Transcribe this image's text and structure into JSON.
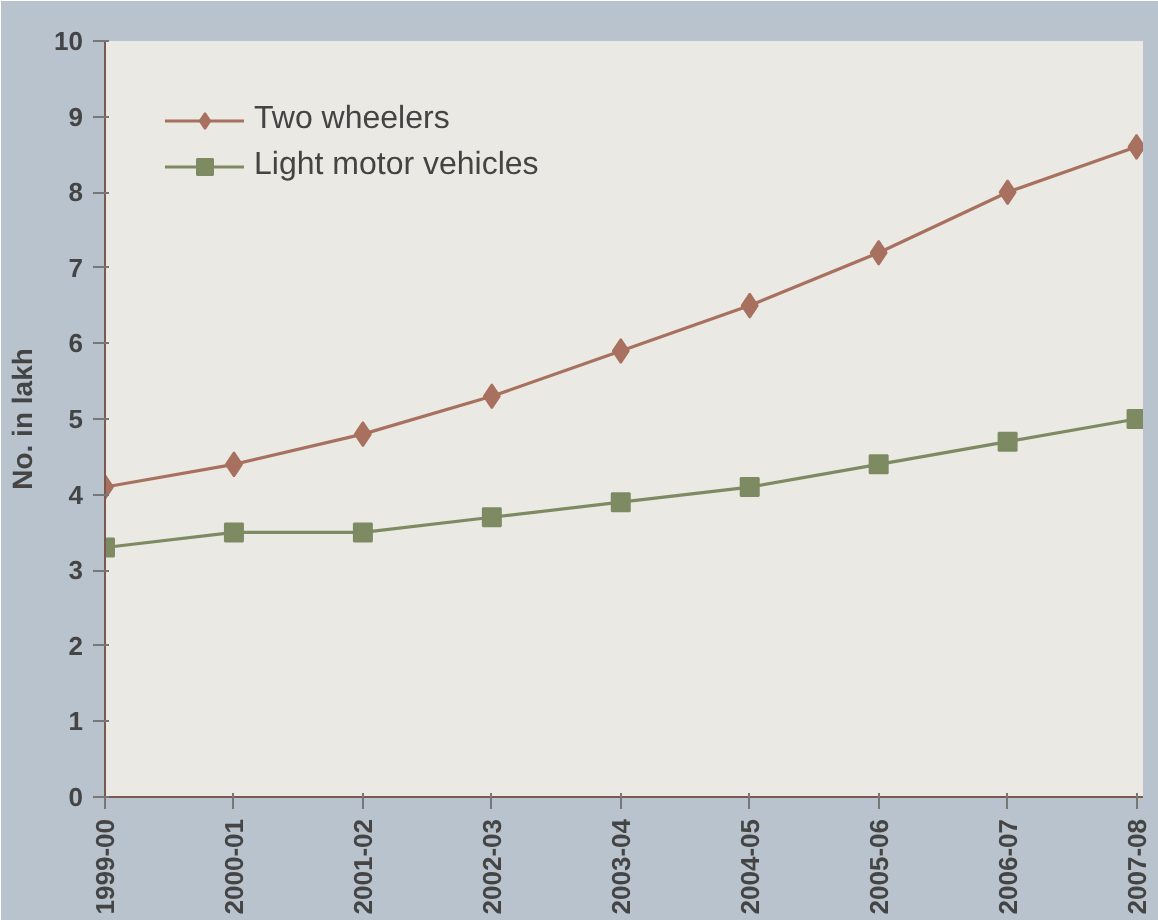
{
  "chart_data": {
    "type": "line",
    "ylabel": "No. in lakh",
    "categories": [
      "1999-00",
      "2000-01",
      "2001-02",
      "2002-03",
      "2003-04",
      "2004-05",
      "2005-06",
      "2006-07",
      "2007-08"
    ],
    "series": [
      {
        "name": "Two wheelers",
        "color": "#a8705f",
        "marker": "diamond",
        "values": [
          4.1,
          4.4,
          4.8,
          5.3,
          5.9,
          6.5,
          7.2,
          8.0,
          8.6
        ]
      },
      {
        "name": "Light motor vehicles",
        "color": "#7d8a62",
        "marker": "square",
        "values": [
          3.3,
          3.5,
          3.5,
          3.7,
          3.9,
          4.1,
          4.4,
          4.7,
          5.0
        ]
      }
    ],
    "ylim": [
      0,
      10
    ],
    "yticks": [
      0,
      1,
      2,
      3,
      4,
      5,
      6,
      7,
      8,
      9,
      10
    ],
    "grid": false,
    "legend": "top left",
    "line_style": "solid"
  }
}
